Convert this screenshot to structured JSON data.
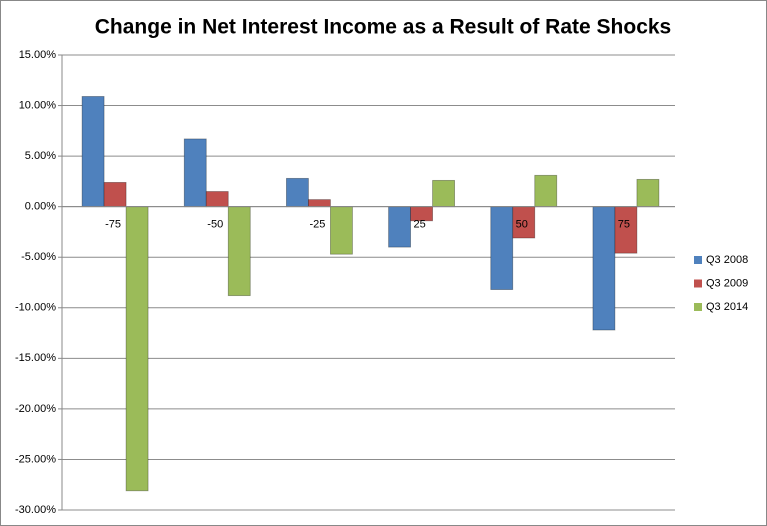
{
  "chart_data": {
    "type": "bar",
    "title": "Change in Net Interest Income as a Result of Rate Shocks",
    "categories": [
      "-75",
      "-50",
      "-25",
      "25",
      "50",
      "75"
    ],
    "series": [
      {
        "name": "Q3 2008",
        "color": "#4f81bd",
        "values": [
          10.9,
          6.7,
          2.8,
          -4.0,
          -8.2,
          -12.2
        ]
      },
      {
        "name": "Q3 2009",
        "color": "#c0504d",
        "values": [
          2.4,
          1.5,
          0.7,
          -1.4,
          -3.1,
          -4.6
        ]
      },
      {
        "name": "Q3 2014",
        "color": "#9bbb59",
        "values": [
          -28.1,
          -8.8,
          -4.7,
          2.6,
          3.1,
          2.7
        ]
      }
    ],
    "ylim": [
      -30,
      15
    ],
    "yticks": [
      {
        "value": -30,
        "label": "-30.00%"
      },
      {
        "value": -25,
        "label": "-25.00%"
      },
      {
        "value": -20,
        "label": "-20.00%"
      },
      {
        "value": -15,
        "label": "-15.00%"
      },
      {
        "value": -10,
        "label": "-10.00%"
      },
      {
        "value": -5,
        "label": "-5.00%"
      },
      {
        "value": 0,
        "label": "0.00%"
      },
      {
        "value": 5,
        "label": "5.00%"
      },
      {
        "value": 10,
        "label": "10.00%"
      },
      {
        "value": 15,
        "label": "15.00%"
      }
    ],
    "grid": true,
    "legend": "right"
  }
}
